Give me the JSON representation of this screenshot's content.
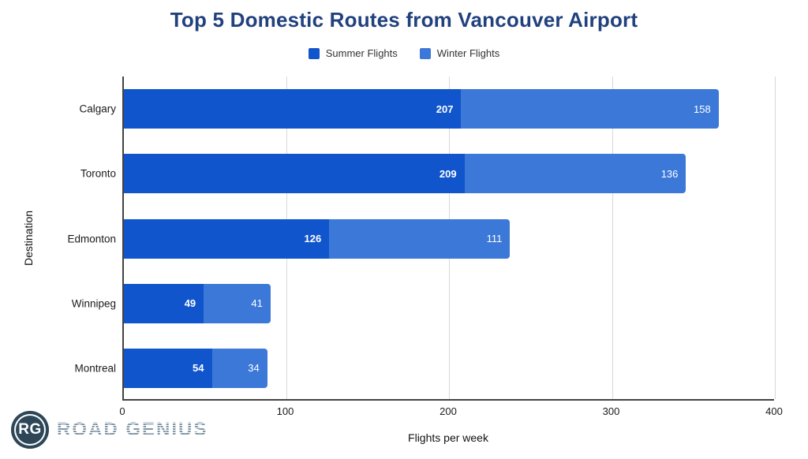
{
  "chart_data": {
    "type": "bar",
    "orientation": "horizontal-stacked",
    "title": "Top 5 Domestic Routes from Vancouver Airport",
    "title_color": "#21417E",
    "categories": [
      "Calgary",
      "Toronto",
      "Edmonton",
      "Winnipeg",
      "Montreal"
    ],
    "series": [
      {
        "name": "Summer Flights",
        "color": "#1155CC",
        "values": [
          207,
          209,
          126,
          49,
          54
        ]
      },
      {
        "name": "Winter Flights",
        "color": "#3C78D8",
        "values": [
          158,
          136,
          111,
          41,
          34
        ]
      }
    ],
    "xlabel": "Flights per week",
    "ylabel": "Destination",
    "xlim": [
      0,
      400
    ],
    "xticks": [
      0,
      100,
      200,
      300,
      400
    ],
    "grid": true,
    "gridline_color": "#d9d9d9",
    "legend_position": "top",
    "value_label_color": "#ffffff"
  },
  "branding": {
    "initials": "RG",
    "name": "ROAD GENIUS",
    "badge_color": "#2D4758",
    "name_color": "#8298A8"
  }
}
